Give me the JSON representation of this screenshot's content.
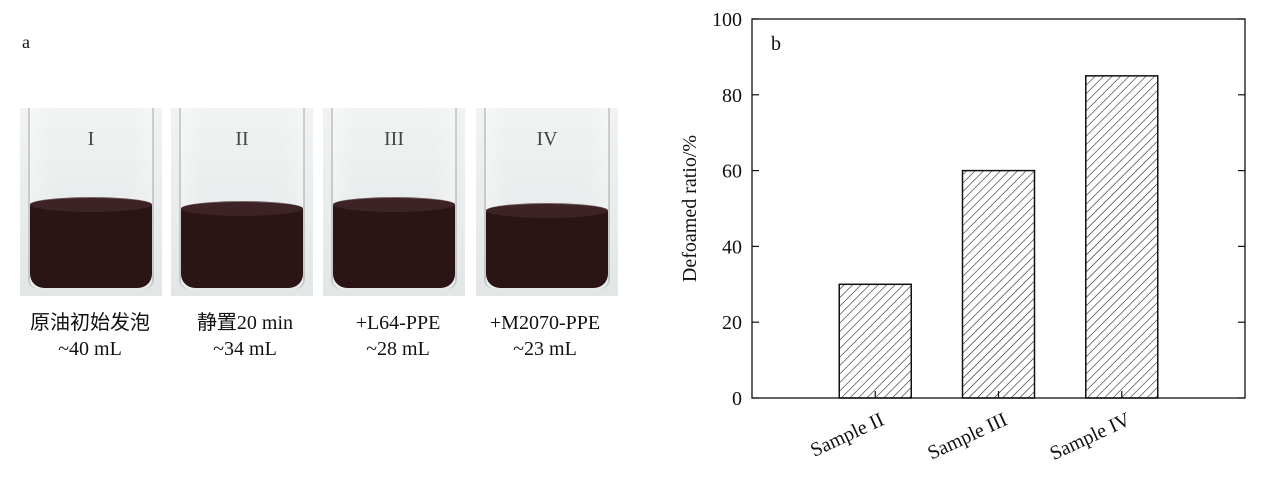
{
  "panel_a": {
    "label": "a",
    "beakers": [
      {
        "roman": "I",
        "caption_line1": "原油初始发泡",
        "caption_line2": "~40 mL",
        "liquid_level": 0.45
      },
      {
        "roman": "II",
        "caption_line1": "静置20 min",
        "caption_line2": "~34 mL",
        "liquid_level": 0.43
      },
      {
        "roman": "III",
        "caption_line1": "+L64-PPE",
        "caption_line2": "~28 mL",
        "liquid_level": 0.45
      },
      {
        "roman": "IV",
        "caption_line1": "+M2070-PPE",
        "caption_line2": "~23 mL",
        "liquid_level": 0.42
      }
    ]
  },
  "chart_data": {
    "type": "bar",
    "panel_label": "b",
    "categories": [
      "Sample II",
      "Sample III",
      "Sample IV"
    ],
    "values": [
      30,
      60,
      85
    ],
    "title": "",
    "xlabel": "",
    "ylabel": "Defoamed ratio/%",
    "ylim": [
      0,
      100
    ],
    "yticks": [
      0,
      20,
      40,
      60,
      80,
      100
    ],
    "bar_fill": "diagonal-hatch",
    "grid": false,
    "colors": {
      "bar_stroke": "#111111",
      "hatch": "#111111",
      "axis": "#111111"
    }
  }
}
